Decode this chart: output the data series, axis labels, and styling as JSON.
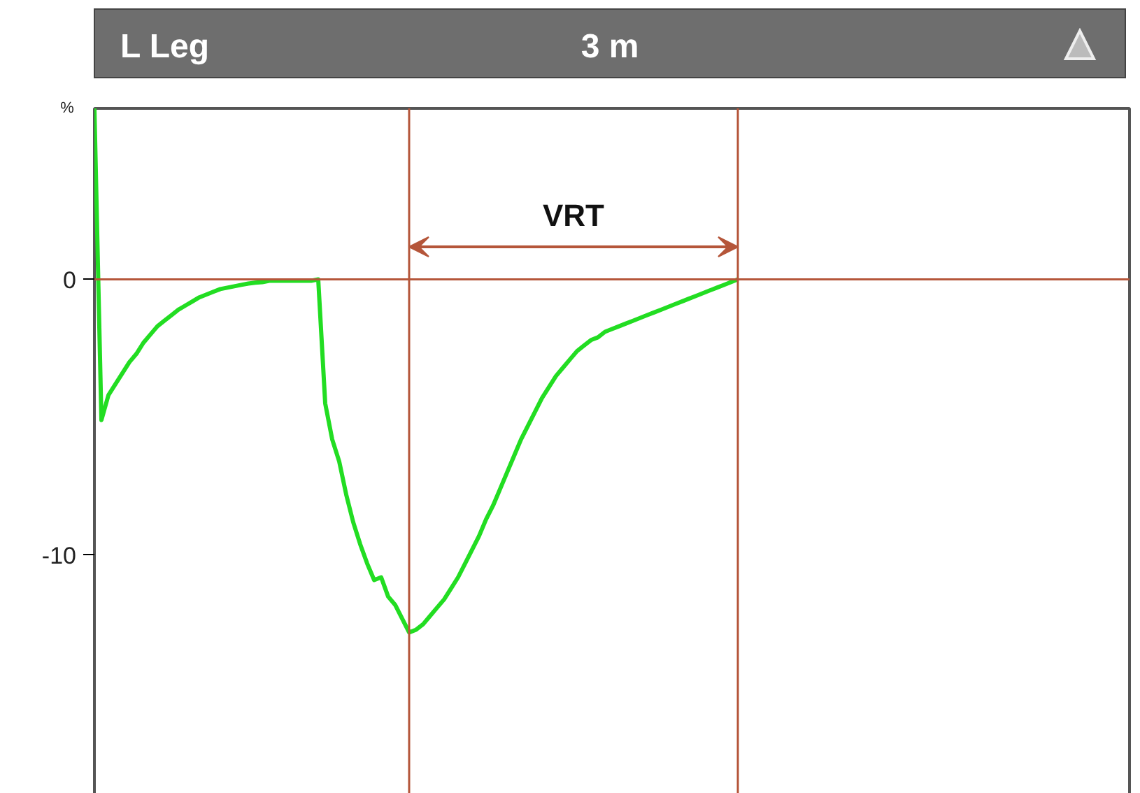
{
  "chart_data": {
    "type": "line",
    "title": "L Leg",
    "subtitle": "3 m",
    "ylabel": "%",
    "annotations": [
      "VRT"
    ],
    "categories": [
      null,
      null,
      null,
      null,
      null,
      null,
      null,
      null,
      null,
      null,
      null,
      null,
      null,
      null,
      null,
      null,
      null,
      null,
      null,
      null,
      null,
      null,
      null,
      null,
      null,
      null,
      null,
      null,
      null,
      null,
      null,
      null,
      null,
      null,
      null,
      null,
      null,
      null,
      null,
      null,
      null,
      null,
      null,
      null,
      null,
      null,
      null,
      null,
      null,
      null,
      null,
      null,
      null,
      null,
      null,
      null,
      null,
      null,
      null,
      null,
      null,
      null,
      null,
      null,
      null,
      null,
      null,
      null,
      null,
      null,
      null,
      null,
      null,
      null,
      null,
      null,
      null,
      null,
      null,
      null,
      null,
      null,
      null,
      null,
      null,
      null,
      null,
      null,
      null,
      null,
      null,
      null,
      null,
      null,
      null,
      null,
      null,
      null,
      null,
      null,
      null,
      null,
      null,
      null,
      null,
      null,
      null,
      null,
      null,
      null,
      null,
      null,
      null,
      null,
      null,
      null,
      null,
      null,
      null,
      null,
      null,
      null,
      null,
      null,
      null,
      null,
      null,
      null,
      null,
      null,
      null,
      null,
      null,
      null,
      null,
      null,
      null,
      null,
      null,
      null,
      null,
      null,
      null,
      null,
      null,
      null,
      null,
      null,
      null
    ],
    "series": [
      {
        "color": "#22dd22",
        "values": [
          6.2,
          -5.1,
          -4.2,
          -3.8,
          -3.4,
          -3.0,
          -2.7,
          -2.3,
          -2.0,
          -1.7,
          -1.5,
          -1.3,
          -1.1,
          -0.95,
          -0.8,
          -0.65,
          -0.55,
          -0.45,
          -0.35,
          -0.3,
          -0.25,
          -0.2,
          -0.15,
          -0.12,
          -0.1,
          -0.05,
          -0.05,
          -0.05,
          -0.05,
          -0.05,
          -0.05,
          -0.05,
          0,
          -4.5,
          -5.8,
          -6.6,
          -7.8,
          -8.8,
          -9.6,
          -10.3,
          -10.9,
          -10.8,
          -11.5,
          -11.8,
          -12.3,
          -12.8,
          -12.7,
          -12.5,
          -12.2,
          -11.9,
          -11.6,
          -11.2,
          -10.8,
          -10.3,
          -9.8,
          -9.3,
          -8.7,
          -8.2,
          -7.6,
          -7.0,
          -6.4,
          -5.8,
          -5.3,
          -4.8,
          -4.3,
          -3.9,
          -3.5,
          -3.2,
          -2.9,
          -2.6,
          -2.4,
          -2.2,
          -2.1,
          -1.9,
          -1.8,
          -1.7,
          -1.6,
          -1.5,
          -1.4,
          -1.3,
          -1.2,
          -1.1,
          -1.0,
          -0.9,
          -0.8,
          -0.7,
          -0.6,
          -0.5,
          -0.4,
          -0.3,
          -0.2,
          -0.1,
          0,
          null,
          null,
          null,
          null,
          null,
          null,
          null,
          null,
          null,
          null,
          null,
          null,
          null,
          null,
          null,
          null,
          null,
          null,
          null,
          null,
          null,
          null,
          null,
          null,
          null,
          null,
          null,
          null,
          null,
          null,
          null,
          null,
          null,
          null,
          null,
          null,
          null,
          null,
          null,
          null,
          null,
          null,
          null,
          null,
          null,
          null,
          null,
          null,
          null,
          null,
          null,
          null,
          null,
          null,
          null,
          null
        ]
      }
    ],
    "ylim": [
      -18.9,
      6.2
    ],
    "yticks": [
      0,
      -10
    ],
    "tick_labels": "y",
    "ref_lines": [
      {
        "axis": "y",
        "value": 0,
        "color": "#b5563a"
      }
    ],
    "grid": false
  }
}
